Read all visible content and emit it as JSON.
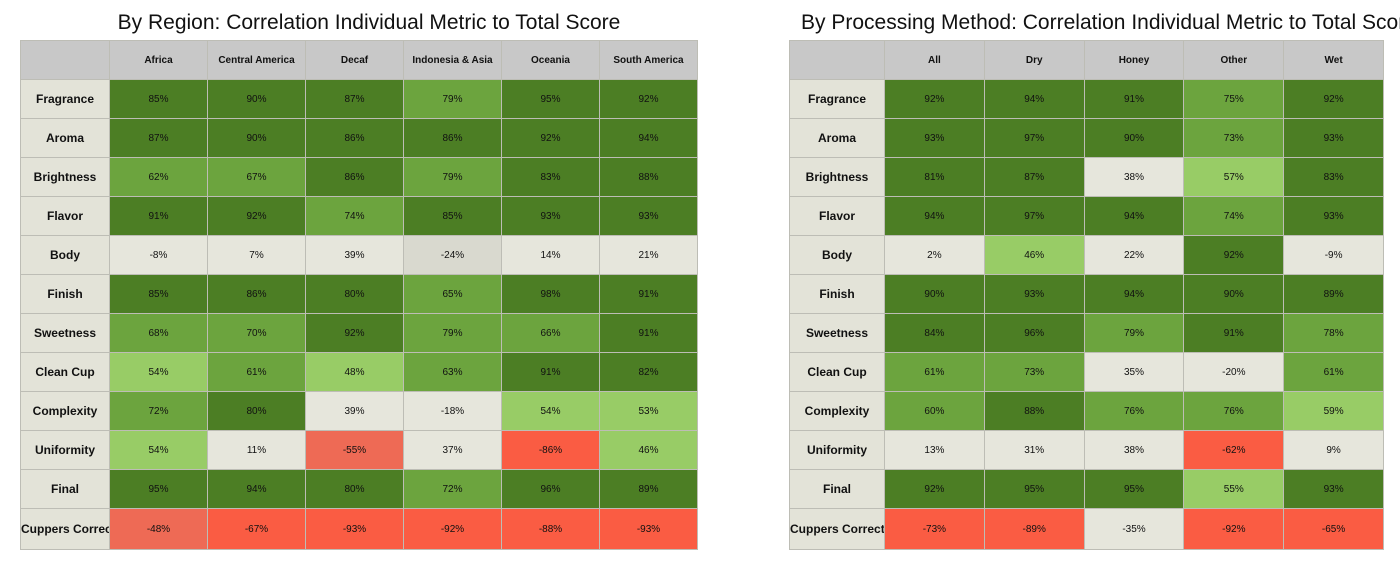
{
  "chart_data": [
    {
      "type": "heatmap",
      "title": "By Region: Correlation Individual Metric to Total Score",
      "columns": [
        "Africa",
        "Central America",
        "Decaf",
        "Indonesia & Asia",
        "Oceania",
        "South America"
      ],
      "rows": [
        "Fragrance",
        "Aroma",
        "Brightness",
        "Flavor",
        "Body",
        "Finish",
        "Sweetness",
        "Clean Cup",
        "Complexity",
        "Uniformity",
        "Final",
        "Cuppers Correction"
      ],
      "values": [
        [
          85,
          90,
          87,
          79,
          95,
          92
        ],
        [
          87,
          90,
          86,
          86,
          92,
          94
        ],
        [
          62,
          67,
          86,
          79,
          83,
          88
        ],
        [
          91,
          92,
          74,
          85,
          93,
          93
        ],
        [
          -8,
          7,
          39,
          -24,
          14,
          21
        ],
        [
          85,
          86,
          80,
          65,
          98,
          91
        ],
        [
          68,
          70,
          92,
          79,
          66,
          91
        ],
        [
          54,
          61,
          48,
          63,
          91,
          82
        ],
        [
          72,
          80,
          39,
          -18,
          54,
          53
        ],
        [
          54,
          11,
          -55,
          37,
          -86,
          46
        ],
        [
          95,
          94,
          80,
          72,
          96,
          89
        ],
        [
          -48,
          -67,
          -93,
          -92,
          -88,
          -93
        ]
      ],
      "labels": [
        [
          "85%",
          "90%",
          "87%",
          "79%",
          "95%",
          "92%"
        ],
        [
          "87%",
          "90%",
          "86%",
          "86%",
          "92%",
          "94%"
        ],
        [
          "62%",
          "67%",
          "86%",
          "79%",
          "83%",
          "88%"
        ],
        [
          "91%",
          "92%",
          "74%",
          "85%",
          "93%",
          "93%"
        ],
        [
          "-8%",
          "7%",
          "39%",
          "-24%",
          "14%",
          "21%"
        ],
        [
          "85%",
          "86%",
          "80%",
          "65%",
          "98%",
          "91%"
        ],
        [
          "68%",
          "70%",
          "92%",
          "79%",
          "66%",
          "91%"
        ],
        [
          "54%",
          "61%",
          "48%",
          "63%",
          "91%",
          "82%"
        ],
        [
          "72%",
          "80%",
          "39%",
          "-18%",
          "54%",
          "53%"
        ],
        [
          "54%",
          "11%",
          "-55%",
          "37%",
          "-86%",
          "46%"
        ],
        [
          "95%",
          "94%",
          "80%",
          "72%",
          "96%",
          "89%"
        ],
        [
          "-48%",
          "-67%",
          "-93%",
          "-92%",
          "-88%",
          "-93%"
        ]
      ],
      "colors": [
        [
          "#4c7e24",
          "#4c7e24",
          "#4c7e24",
          "#6ca43e",
          "#4c7e24",
          "#4c7e24"
        ],
        [
          "#4c7e24",
          "#4c7e24",
          "#4c7e24",
          "#4c7e24",
          "#4c7e24",
          "#4c7e24"
        ],
        [
          "#6ca43e",
          "#6ca43e",
          "#4c7e24",
          "#6ca43e",
          "#4c7e24",
          "#4c7e24"
        ],
        [
          "#4c7e24",
          "#4c7e24",
          "#6ca43e",
          "#4c7e24",
          "#4c7e24",
          "#4c7e24"
        ],
        [
          "#e6e6dc",
          "#e6e6dc",
          "#e6e6dc",
          "#d9d9cf",
          "#e6e6dc",
          "#e6e6dc"
        ],
        [
          "#4c7e24",
          "#4c7e24",
          "#4c7e24",
          "#6ca43e",
          "#4c7e24",
          "#4c7e24"
        ],
        [
          "#6ca43e",
          "#6ca43e",
          "#4c7e24",
          "#6ca43e",
          "#6ca43e",
          "#4c7e24"
        ],
        [
          "#98cc66",
          "#6ca43e",
          "#98cc66",
          "#6ca43e",
          "#4c7e24",
          "#4c7e24"
        ],
        [
          "#6ca43e",
          "#4c7e24",
          "#e6e6dc",
          "#e6e6dc",
          "#98cc66",
          "#98cc66"
        ],
        [
          "#98cc66",
          "#e6e6dc",
          "#ee6a55",
          "#e6e6dc",
          "#fa5c43",
          "#98cc66"
        ],
        [
          "#4c7e24",
          "#4c7e24",
          "#4c7e24",
          "#6ca43e",
          "#4c7e24",
          "#4c7e24"
        ],
        [
          "#ee6a55",
          "#fa5c43",
          "#fa5c43",
          "#fa5c43",
          "#fa5c43",
          "#fa5c43"
        ]
      ]
    },
    {
      "type": "heatmap",
      "title": "By Processing Method: Correlation Individual Metric to Total Score",
      "columns": [
        "All",
        "Dry",
        "Honey",
        "Other",
        "Wet"
      ],
      "rows": [
        "Fragrance",
        "Aroma",
        "Brightness",
        "Flavor",
        "Body",
        "Finish",
        "Sweetness",
        "Clean Cup",
        "Complexity",
        "Uniformity",
        "Final",
        "Cuppers Correction"
      ],
      "values": [
        [
          92,
          94,
          91,
          75,
          92
        ],
        [
          93,
          97,
          90,
          73,
          93
        ],
        [
          81,
          87,
          38,
          57,
          83
        ],
        [
          94,
          97,
          94,
          74,
          93
        ],
        [
          2,
          46,
          22,
          92,
          -9
        ],
        [
          90,
          93,
          94,
          90,
          89
        ],
        [
          84,
          96,
          79,
          91,
          78
        ],
        [
          61,
          73,
          35,
          -20,
          61
        ],
        [
          60,
          88,
          76,
          76,
          59
        ],
        [
          13,
          31,
          38,
          -62,
          9
        ],
        [
          92,
          95,
          95,
          55,
          93
        ],
        [
          -73,
          -89,
          -35,
          -92,
          -65
        ]
      ],
      "labels": [
        [
          "92%",
          "94%",
          "91%",
          "75%",
          "92%"
        ],
        [
          "93%",
          "97%",
          "90%",
          "73%",
          "93%"
        ],
        [
          "81%",
          "87%",
          "38%",
          "57%",
          "83%"
        ],
        [
          "94%",
          "97%",
          "94%",
          "74%",
          "93%"
        ],
        [
          "2%",
          "46%",
          "22%",
          "92%",
          "-9%"
        ],
        [
          "90%",
          "93%",
          "94%",
          "90%",
          "89%"
        ],
        [
          "84%",
          "96%",
          "79%",
          "91%",
          "78%"
        ],
        [
          "61%",
          "73%",
          "35%",
          "-20%",
          "61%"
        ],
        [
          "60%",
          "88%",
          "76%",
          "76%",
          "59%"
        ],
        [
          "13%",
          "31%",
          "38%",
          "-62%",
          "9%"
        ],
        [
          "92%",
          "95%",
          "95%",
          "55%",
          "93%"
        ],
        [
          "-73%",
          "-89%",
          "-35%",
          "-92%",
          "-65%"
        ]
      ],
      "colors": [
        [
          "#4c7e24",
          "#4c7e24",
          "#4c7e24",
          "#6ca43e",
          "#4c7e24"
        ],
        [
          "#4c7e24",
          "#4c7e24",
          "#4c7e24",
          "#6ca43e",
          "#4c7e24"
        ],
        [
          "#4c7e24",
          "#4c7e24",
          "#e6e6dc",
          "#98cc66",
          "#4c7e24"
        ],
        [
          "#4c7e24",
          "#4c7e24",
          "#4c7e24",
          "#6ca43e",
          "#4c7e24"
        ],
        [
          "#e6e6dc",
          "#98cc66",
          "#e6e6dc",
          "#4c7e24",
          "#e6e6dc"
        ],
        [
          "#4c7e24",
          "#4c7e24",
          "#4c7e24",
          "#4c7e24",
          "#4c7e24"
        ],
        [
          "#4c7e24",
          "#4c7e24",
          "#6ca43e",
          "#4c7e24",
          "#6ca43e"
        ],
        [
          "#6ca43e",
          "#6ca43e",
          "#e6e6dc",
          "#e6e6dc",
          "#6ca43e"
        ],
        [
          "#6ca43e",
          "#4c7e24",
          "#6ca43e",
          "#6ca43e",
          "#98cc66"
        ],
        [
          "#e6e6dc",
          "#e6e6dc",
          "#e6e6dc",
          "#fa5c43",
          "#e6e6dc"
        ],
        [
          "#4c7e24",
          "#4c7e24",
          "#4c7e24",
          "#98cc66",
          "#4c7e24"
        ],
        [
          "#fa5c43",
          "#fa5c43",
          "#e6e6dc",
          "#fa5c43",
          "#fa5c43"
        ]
      ]
    }
  ]
}
